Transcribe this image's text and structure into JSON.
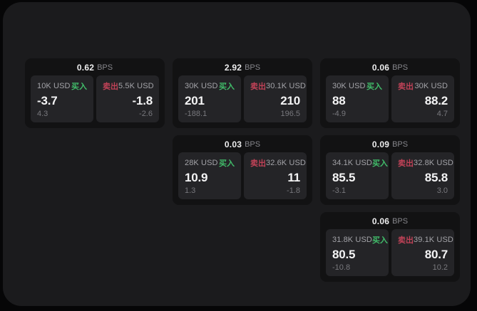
{
  "page": {
    "labels": {
      "bps": "BPS",
      "buy": "买入",
      "sell": "卖出"
    },
    "colors": {
      "outer_bg": "#060607",
      "panel_bg": "#1b1b1d",
      "card_bg": "#121213",
      "tile_bg": "#242427",
      "buy_green": "#41bd6a",
      "sell_red": "#c04257",
      "value_white": "#f4f4f5",
      "muted_gray": "#86868b"
    }
  },
  "columns": [
    {
      "cards": [
        {
          "bps": "0.62",
          "buy": {
            "size": "10K USD",
            "value": "-3.7",
            "delta": "4.3"
          },
          "sell": {
            "size": "5.5K USD",
            "value": "-1.8",
            "delta": "-2.6"
          }
        }
      ]
    },
    {
      "cards": [
        {
          "bps": "2.92",
          "buy": {
            "size": "30K USD",
            "value": "201",
            "delta": "-188.1"
          },
          "sell": {
            "size": "30.1K USD",
            "value": "210",
            "delta": "196.5"
          }
        },
        {
          "bps": "0.03",
          "buy": {
            "size": "28K USD",
            "value": "10.9",
            "delta": "1.3"
          },
          "sell": {
            "size": "32.6K USD",
            "value": "11",
            "delta": "-1.8"
          }
        }
      ]
    },
    {
      "cards": [
        {
          "bps": "0.06",
          "buy": {
            "size": "30K USD",
            "value": "88",
            "delta": "-4.9"
          },
          "sell": {
            "size": "30K USD",
            "value": "88.2",
            "delta": "4.7"
          }
        },
        {
          "bps": "0.09",
          "buy": {
            "size": "34.1K USD",
            "value": "85.5",
            "delta": "-3.1"
          },
          "sell": {
            "size": "32.8K USD",
            "value": "85.8",
            "delta": "3.0"
          }
        },
        {
          "bps": "0.06",
          "buy": {
            "size": "31.8K USD",
            "value": "80.5",
            "delta": "-10.8"
          },
          "sell": {
            "size": "39.1K USD",
            "value": "80.7",
            "delta": "10.2"
          }
        }
      ]
    }
  ]
}
